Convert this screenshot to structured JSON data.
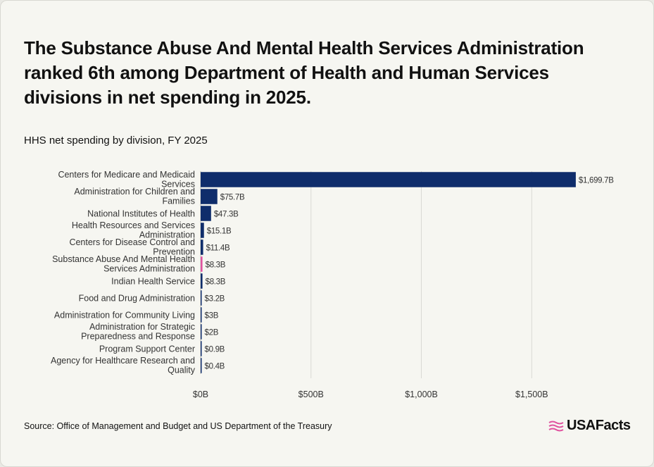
{
  "title": "The Substance Abuse And Mental Health Services Administration ranked 6th among Department of Health and Human Services divisions in net spending in 2025.",
  "subtitle": "HHS net spending by division, FY 2025",
  "source": "Source: Office of Management and Budget and US Department of the Treasury",
  "brand": "USAFacts",
  "brand_icon": "usafacts-flag-icon",
  "colors": {
    "bar": "#0f2d6b",
    "highlight": "#e0539f",
    "grid": "#d9d9d4",
    "text": "#333333"
  },
  "chart_data": {
    "type": "bar",
    "orientation": "horizontal",
    "categories": [
      [
        "Centers for Medicare and Medicaid",
        "Services"
      ],
      [
        "Administration for Children and",
        "Families"
      ],
      [
        "National Institutes of Health"
      ],
      [
        "Health Resources and Services",
        "Administration"
      ],
      [
        "Centers for Disease Control and",
        "Prevention"
      ],
      [
        "Substance Abuse And Mental Health",
        "Services Administration"
      ],
      [
        "Indian Health Service"
      ],
      [
        "Food and Drug Administration"
      ],
      [
        "Administration for Community Living"
      ],
      [
        "Administration for Strategic",
        "Preparedness and Response"
      ],
      [
        "Program Support Center"
      ],
      [
        "Agency for Healthcare Research and",
        "Quality"
      ]
    ],
    "values": [
      1699.7,
      75.7,
      47.3,
      15.1,
      11.4,
      8.3,
      8.3,
      3.2,
      3,
      2,
      0.9,
      0.4
    ],
    "labels": [
      "$1,699.7B",
      "$75.7B",
      "$47.3B",
      "$15.1B",
      "$11.4B",
      "$8.3B",
      "$8.3B",
      "$3.2B",
      "$3B",
      "$2B",
      "$0.9B",
      "$0.4B"
    ],
    "highlight_index": 5,
    "xlim": [
      0,
      1700
    ],
    "xticks": [
      0,
      500,
      1000,
      1500
    ],
    "xtick_labels": [
      "$0B",
      "$500B",
      "$1,000B",
      "$1,500B"
    ],
    "grid": true
  }
}
